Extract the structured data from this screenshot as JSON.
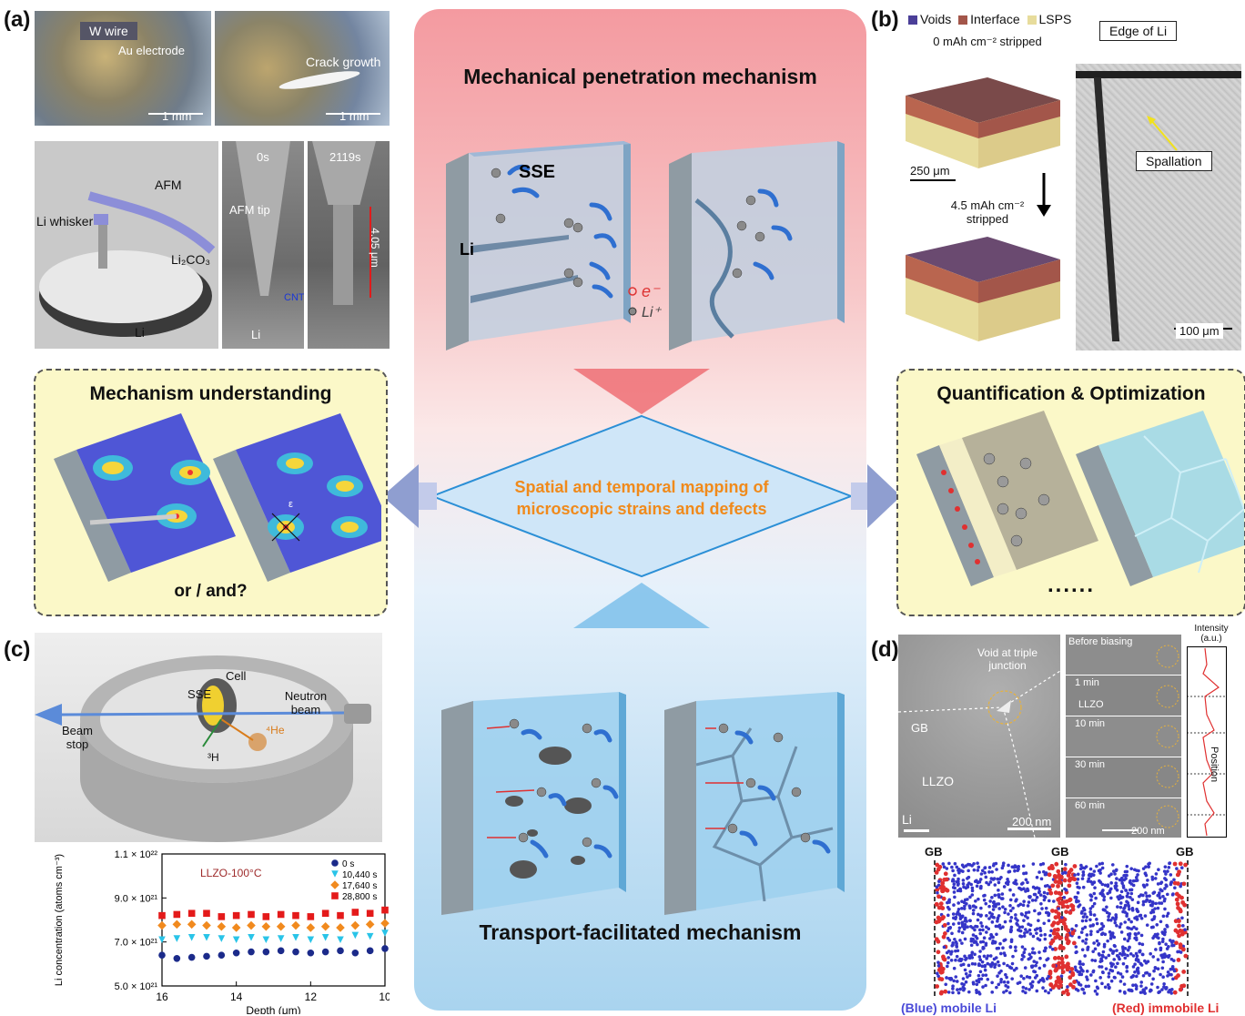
{
  "panels": {
    "a": "(a)",
    "b": "(b)",
    "c": "(c)",
    "d": "(d)"
  },
  "panel_a": {
    "photo1": {
      "w_wire": "W wire",
      "au_electrode": "Au electrode",
      "scale": "1 mm"
    },
    "photo2": {
      "crack": "Crack growth",
      "scale": "1 mm"
    },
    "schematic": {
      "afm": "AFM",
      "li_whisker": "Li whisker",
      "li2co3": "Li₂CO₃",
      "li": "Li"
    },
    "sem1": {
      "time": "0s",
      "afm_tip": "AFM tip",
      "cnt": "CNT",
      "li": "Li"
    },
    "sem2": {
      "time": "2119s",
      "length": "4.05 μm"
    }
  },
  "panel_b": {
    "legend": [
      "Voids",
      "Interface",
      "LSPS"
    ],
    "legend_colors": [
      "#4b3f98",
      "#a3564a",
      "#e7dc9c"
    ],
    "top_label": "0 mAh cm⁻² stripped",
    "bottom_label": "4.5 mAh cm⁻² stripped",
    "scale_3d": "250 μm",
    "edge": "Edge of Li",
    "spallation": "Spallation",
    "scale_xray": "100 μm"
  },
  "center": {
    "top_title": "Mechanical penetration mechanism",
    "sse": "SSE",
    "li": "Li",
    "electron": "e⁻",
    "li_ion": "Li⁺",
    "diamond_text": "Spatial and temporal mapping of microscopic strains and defects",
    "bottom_title": "Transport-facilitated mechanism"
  },
  "left_box": {
    "title": "Mechanism understanding",
    "or_and": "or / and?",
    "epsilon": "ε"
  },
  "right_box": {
    "title": "Quantification & Optimization",
    "ellipsis": "......"
  },
  "panel_c": {
    "sse": "SSE",
    "cell": "Cell",
    "neutron_beam": "Neutron beam",
    "beam_stop": "Beam stop",
    "he": "⁴He",
    "h": "³H"
  },
  "chart_data": {
    "type": "scatter",
    "title": "LLZO-100°C",
    "xlabel": "Depth (μm)",
    "ylabel": "Li concentration (atoms cm⁻³)",
    "x_ticks": [
      "16",
      "14",
      "12",
      "10"
    ],
    "y_ticks": [
      "1.1 × 10²²",
      "9.0 × 10²¹",
      "7.0 × 10²¹",
      "5.0 × 10²¹"
    ],
    "xlim": [
      16,
      10
    ],
    "ylim": [
      5e+21,
      1.1e+22
    ],
    "x": [
      16,
      15.6,
      15.2,
      14.8,
      14.4,
      14,
      13.6,
      13.2,
      12.8,
      12.4,
      12,
      11.6,
      11.2,
      10.8,
      10.4,
      10
    ],
    "series": [
      {
        "name": "0 s",
        "color": "#1b2a8a",
        "marker": "circle",
        "values": [
          6.4e+21,
          6.25e+21,
          6.3e+21,
          6.35e+21,
          6.4e+21,
          6.5e+21,
          6.55e+21,
          6.55e+21,
          6.6e+21,
          6.55e+21,
          6.5e+21,
          6.55e+21,
          6.6e+21,
          6.5e+21,
          6.6e+21,
          6.7e+21
        ]
      },
      {
        "name": "10,440 s",
        "color": "#29c4e8",
        "marker": "triangle-down",
        "values": [
          7.1e+21,
          7.15e+21,
          7.2e+21,
          7.2e+21,
          7.15e+21,
          7.1e+21,
          7.2e+21,
          7.1e+21,
          7.15e+21,
          7.2e+21,
          7.1e+21,
          7.2e+21,
          7.1e+21,
          7.3e+21,
          7.25e+21,
          7.4e+21
        ]
      },
      {
        "name": "17,640 s",
        "color": "#f18a1e",
        "marker": "diamond",
        "values": [
          7.75e+21,
          7.8e+21,
          7.8e+21,
          7.75e+21,
          7.7e+21,
          7.65e+21,
          7.75e+21,
          7.7e+21,
          7.7e+21,
          7.75e+21,
          7.65e+21,
          7.7e+21,
          7.65e+21,
          7.75e+21,
          7.8e+21,
          7.85e+21
        ]
      },
      {
        "name": "28,800 s",
        "color": "#e41a1a",
        "marker": "square",
        "values": [
          8.2e+21,
          8.25e+21,
          8.3e+21,
          8.3e+21,
          8.15e+21,
          8.2e+21,
          8.25e+21,
          8.15e+21,
          8.25e+21,
          8.2e+21,
          8.15e+21,
          8.3e+21,
          8.2e+21,
          8.35e+21,
          8.3e+21,
          8.45e+21
        ]
      }
    ]
  },
  "panel_d": {
    "void": "Void at triple junction",
    "gb": "GB",
    "llzo": "LLZO",
    "li": "Li",
    "scale1": "200 nm",
    "before": "Before biasing",
    "t1": "1 min",
    "t_llzo": "LLZO",
    "t10": "10 min",
    "t30": "30 min",
    "t60": "60 min",
    "scale2": "200 nm",
    "intensity": "Intensity (a.u.)",
    "position": "Position",
    "gb_labels": [
      "GB",
      "GB",
      "GB"
    ],
    "mobile": "(Blue) mobile Li",
    "immobile": "(Red) immobile Li"
  }
}
